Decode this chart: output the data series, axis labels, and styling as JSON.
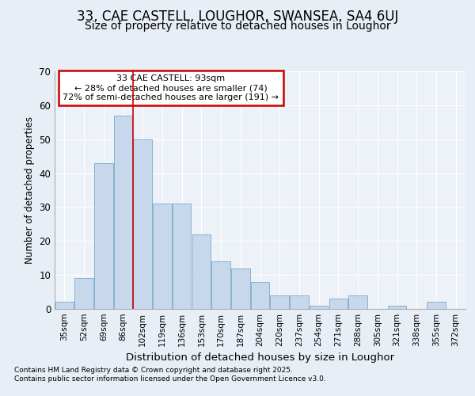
{
  "title1": "33, CAE CASTELL, LOUGHOR, SWANSEA, SA4 6UJ",
  "title2": "Size of property relative to detached houses in Loughor",
  "xlabel": "Distribution of detached houses by size in Loughor",
  "ylabel": "Number of detached properties",
  "categories": [
    "35sqm",
    "52sqm",
    "69sqm",
    "86sqm",
    "102sqm",
    "119sqm",
    "136sqm",
    "153sqm",
    "170sqm",
    "187sqm",
    "204sqm",
    "220sqm",
    "237sqm",
    "254sqm",
    "271sqm",
    "288sqm",
    "305sqm",
    "321sqm",
    "338sqm",
    "355sqm",
    "372sqm"
  ],
  "values": [
    2,
    9,
    43,
    57,
    50,
    31,
    31,
    22,
    14,
    12,
    8,
    4,
    4,
    1,
    3,
    4,
    0,
    1,
    0,
    2,
    0
  ],
  "bar_color": "#c8d8ec",
  "bar_edge_color": "#7aaac8",
  "red_line_x": 3.5,
  "annotation_title": "33 CAE CASTELL: 93sqm",
  "annotation_line1": "← 28% of detached houses are smaller (74)",
  "annotation_line2": "72% of semi-detached houses are larger (191) →",
  "ylim": [
    0,
    70
  ],
  "yticks": [
    0,
    10,
    20,
    30,
    40,
    50,
    60,
    70
  ],
  "bg_color": "#e8eef5",
  "plot_bg_color": "#edf2f9",
  "footer_line1": "Contains HM Land Registry data © Crown copyright and database right 2025.",
  "footer_line2": "Contains public sector information licensed under the Open Government Licence v3.0.",
  "title1_fontsize": 12,
  "title2_fontsize": 10,
  "annotation_box_color": "#cc0000",
  "grid_color": "#ffffff",
  "red_line_color": "#cc0000"
}
